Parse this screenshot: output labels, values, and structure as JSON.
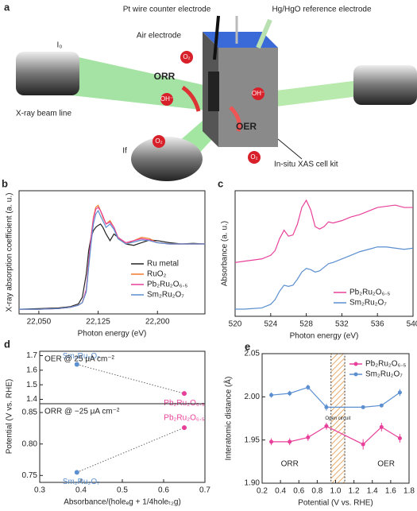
{
  "diagram": {
    "panel_label": "a",
    "labels": [
      "Pt wire counter electrode",
      "Hg/HgO reference electrode",
      "Air electrode",
      "I₀",
      "ORR",
      "OER",
      "X-ray beam line",
      "If",
      "In-situ XAS cell kit",
      "O₂",
      "OH⁻"
    ]
  },
  "chart_data": [
    {
      "type": "line",
      "panel_label": "b",
      "x_label": "Photon energy (eV)",
      "y_label": "X-ray absorption coefficient (a. u.)",
      "x": [
        22025,
        22050,
        22075,
        22090,
        22100,
        22105,
        22110,
        22113,
        22116,
        22119,
        22122,
        22125,
        22128,
        22131,
        22135,
        22140,
        22145,
        22150,
        22160,
        22170,
        22180,
        22190,
        22200,
        22215,
        22230,
        22245,
        22260
      ],
      "xlim": [
        22025,
        22260
      ],
      "ylim": [
        -0.05,
        1.8
      ],
      "xticks": [
        {
          "value": 22050,
          "label": "22,050"
        },
        {
          "value": 22125,
          "label": "22,125"
        },
        {
          "value": 22200,
          "label": "22,200"
        }
      ],
      "series": [
        {
          "name": "Ru metal",
          "color": "#222222",
          "values": [
            0.02,
            0.03,
            0.04,
            0.06,
            0.1,
            0.2,
            0.55,
            0.9,
            1.1,
            1.2,
            1.25,
            1.28,
            1.3,
            1.25,
            1.15,
            1.05,
            1.15,
            1.1,
            1.0,
            0.98,
            1.02,
            1.06,
            1.05,
            1.02,
            1.0,
            1.01,
            1.0
          ]
        },
        {
          "name": "RuO₂",
          "color": "#f07a2a",
          "values": [
            0.02,
            0.02,
            0.03,
            0.05,
            0.08,
            0.12,
            0.3,
            0.7,
            1.1,
            1.4,
            1.55,
            1.58,
            1.5,
            1.4,
            1.3,
            1.35,
            1.25,
            1.1,
            1.0,
            1.05,
            1.1,
            1.08,
            1.02,
            1.0,
            1.0,
            1.0,
            1.0
          ]
        },
        {
          "name": "Pb₂Ru₂O₆.₅",
          "color": "#e8409a",
          "values": [
            0.02,
            0.02,
            0.03,
            0.05,
            0.08,
            0.12,
            0.32,
            0.72,
            1.1,
            1.38,
            1.52,
            1.55,
            1.5,
            1.42,
            1.3,
            1.33,
            1.25,
            1.1,
            1.02,
            1.05,
            1.08,
            1.06,
            1.02,
            1.0,
            1.0,
            1.0,
            1.0
          ]
        },
        {
          "name": "Sm₂Ru₂O₇",
          "color": "#5b8fd0",
          "values": [
            0.02,
            0.02,
            0.03,
            0.05,
            0.08,
            0.12,
            0.28,
            0.65,
            1.0,
            1.3,
            1.45,
            1.5,
            1.42,
            1.35,
            1.25,
            1.3,
            1.22,
            1.08,
            1.0,
            1.03,
            1.06,
            1.05,
            1.02,
            1.0,
            1.0,
            1.0,
            1.0
          ]
        }
      ]
    },
    {
      "type": "line",
      "panel_label": "c",
      "x_label": "Photon energy (eV)",
      "y_label": "Absorbance (a. u.)",
      "x": [
        520,
        521,
        522,
        523,
        524,
        524.5,
        525,
        525.5,
        526,
        526.5,
        527,
        527.5,
        528,
        528.5,
        529,
        529.5,
        530,
        530.5,
        531,
        532,
        533,
        534,
        535,
        536,
        537,
        538,
        539,
        540
      ],
      "xlim": [
        520,
        540
      ],
      "ylim": [
        -0.5,
        10
      ],
      "xticks": [
        520,
        524,
        528,
        532,
        536,
        540
      ],
      "series": [
        {
          "name": "Pb₂Ru₂O₆.₅",
          "color": "#e8409a",
          "values": [
            4.0,
            4.1,
            4.2,
            4.3,
            4.6,
            5.0,
            6.0,
            6.7,
            6.2,
            6.3,
            7.2,
            8.6,
            9.2,
            8.4,
            7.0,
            6.8,
            7.0,
            7.4,
            7.3,
            7.5,
            7.8,
            8.0,
            8.3,
            8.6,
            8.7,
            8.8,
            8.6,
            8.6
          ]
        },
        {
          "name": "Sm₂Ru₂O₇",
          "color": "#5b8fd0",
          "values": [
            0.1,
            0.1,
            0.15,
            0.2,
            0.5,
            0.9,
            1.6,
            2.1,
            2.0,
            2.1,
            2.6,
            3.2,
            3.5,
            3.4,
            3.2,
            3.3,
            3.6,
            3.9,
            4.0,
            4.3,
            4.6,
            4.9,
            5.1,
            5.3,
            5.3,
            5.2,
            5.1,
            5.2
          ]
        }
      ]
    },
    {
      "type": "scatter",
      "panel_label": "d",
      "y_label": "Potential (V vs. RHE)",
      "annotation": "OER @ 25 μA cm⁻²",
      "x": [
        0.39,
        0.65
      ],
      "values": [
        1.64,
        1.44
      ],
      "point_labels": [
        "Sm₂Ru₂O₇",
        "Pb₂Ru₂O₆.₅"
      ],
      "colors": [
        "#5b8fd0",
        "#e8409a"
      ],
      "xlim": [
        0.3,
        0.7
      ],
      "ylim": [
        1.37,
        1.73
      ],
      "yticks": [
        1.4,
        1.5,
        1.6,
        1.7
      ]
    },
    {
      "type": "scatter",
      "x_label": "Absorbance/(holeₑg + 1/4holeₜ₂g)",
      "annotation": "ORR @ −25 μA cm⁻²",
      "x": [
        0.39,
        0.65
      ],
      "values": [
        0.755,
        0.826
      ],
      "point_labels": [
        "Sm₂Ru₂O₇",
        "Pb₂Ru₂O₆.₅"
      ],
      "colors": [
        "#5b8fd0",
        "#e8409a"
      ],
      "xlim": [
        0.3,
        0.7
      ],
      "ylim": [
        0.739,
        0.864
      ],
      "xticks": [
        0.3,
        0.4,
        0.5,
        0.6,
        0.7
      ],
      "yticks": [
        0.75,
        {
          "value": 0.8,
          "label": "0.80"
        },
        0.85
      ]
    },
    {
      "type": "errorline",
      "panel_label": "e",
      "x_label": "Potential (V vs. RHE)",
      "y_label": "Interatomic distance (Å)",
      "x": [
        0.3,
        0.5,
        0.7,
        0.9,
        1.3,
        1.5,
        1.7
      ],
      "xlim": [
        0.2,
        1.8
      ],
      "ylim": [
        1.9,
        2.05
      ],
      "xticks": [
        0.2,
        0.4,
        0.6,
        0.8,
        {
          "value": 1,
          "label": "1.0"
        },
        1.2,
        1.4,
        1.6,
        1.8
      ],
      "yticks": [
        {
          "value": 1.9,
          "label": "1.90"
        },
        1.95,
        {
          "value": 2,
          "label": "2.00"
        },
        2.05
      ],
      "shade": [
        0.95,
        1.1
      ],
      "shade_label": "Open circuit",
      "annotations": [
        "ORR",
        "OER"
      ],
      "legend": "top-right",
      "series": [
        {
          "name": "Pb₂Ru₂O₆.₅",
          "color": "#e8409a",
          "values": [
            1.948,
            1.948,
            1.953,
            1.966,
            1.945,
            1.965,
            1.952
          ],
          "errors": [
            0.004,
            0.004,
            0.004,
            0.004,
            0.006,
            0.005,
            0.005
          ]
        },
        {
          "name": "Sm₂Ru₂O₇",
          "color": "#5b8fd0",
          "values": [
            2.002,
            2.004,
            2.011,
            1.988,
            1.988,
            1.99,
            2.005
          ],
          "errors": [
            0.003,
            0.003,
            0.003,
            0.004,
            0.002,
            0.002,
            0.004
          ]
        }
      ]
    }
  ]
}
